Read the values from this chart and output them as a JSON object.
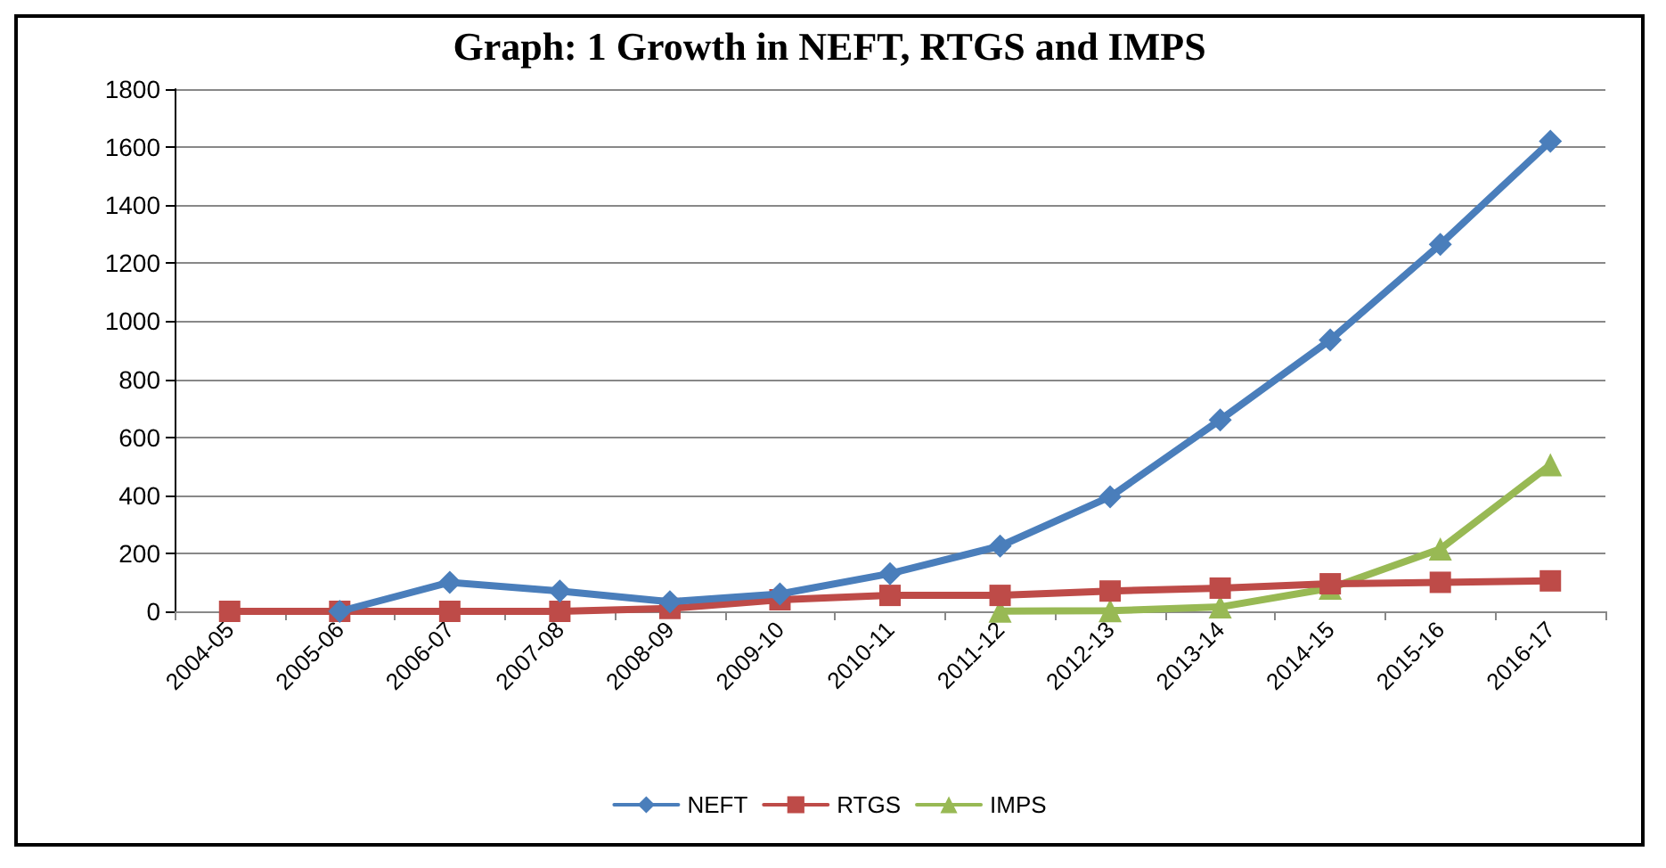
{
  "chart_data": {
    "type": "line",
    "title": "Graph: 1 Growth in NEFT, RTGS and IMPS",
    "categories": [
      "2004-05",
      "2005-06",
      "2006-07",
      "2007-08",
      "2008-09",
      "2009-10",
      "2010-11",
      "2011-12",
      "2012-13",
      "2013-14",
      "2014-15",
      "2015-16",
      "2016-17"
    ],
    "series": [
      {
        "name": "NEFT",
        "color": "#4a7ebb",
        "marker": "diamond",
        "values": [
          null,
          0,
          100,
          70,
          33,
          60,
          130,
          225,
          395,
          660,
          935,
          1265,
          1620
        ]
      },
      {
        "name": "RTGS",
        "color": "#be4b48",
        "marker": "square",
        "values": [
          0,
          0,
          0,
          0,
          10,
          40,
          55,
          55,
          70,
          80,
          95,
          100,
          105
        ]
      },
      {
        "name": "IMPS",
        "color": "#98b954",
        "marker": "triangle",
        "values": [
          null,
          null,
          null,
          null,
          null,
          null,
          null,
          1,
          2,
          15,
          80,
          215,
          505
        ]
      }
    ],
    "ylim": [
      0,
      1800
    ],
    "yticks": [
      0,
      200,
      400,
      600,
      800,
      1000,
      1200,
      1400,
      1600,
      1800
    ],
    "grid": "y",
    "legend": "bottom"
  }
}
